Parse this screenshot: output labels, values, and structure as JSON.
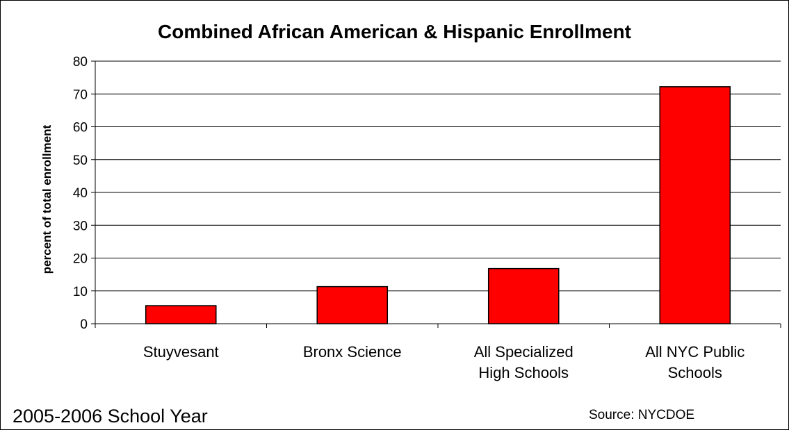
{
  "chart_data": {
    "type": "bar",
    "title": "Combined African American & Hispanic Enrollment",
    "xlabel": "",
    "ylabel": "percent of total enrollment",
    "categories": [
      [
        "Stuyvesant"
      ],
      [
        "Bronx Science"
      ],
      [
        "All Specialized",
        "High Schools"
      ],
      [
        "All NYC Public",
        "Schools"
      ]
    ],
    "values": [
      5.5,
      11.3,
      16.8,
      72.2
    ],
    "ylim": [
      0,
      80
    ],
    "yticks": [
      0,
      10,
      20,
      30,
      40,
      50,
      60,
      70,
      80
    ],
    "grid": true,
    "legend": "none",
    "bar_color": "#ff0000"
  },
  "footer": {
    "school_year": "2005-2006 School Year",
    "source": "Source: NYCDOE"
  }
}
